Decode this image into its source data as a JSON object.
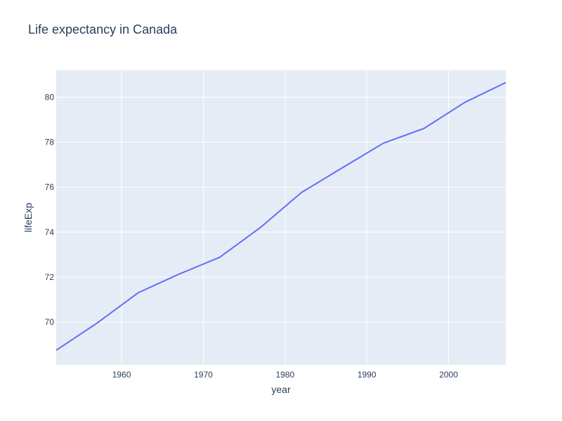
{
  "chart_data": {
    "type": "line",
    "title": "Life expectancy in Canada",
    "xlabel": "year",
    "ylabel": "lifeExp",
    "x_ticks": [
      "1960",
      "1970",
      "1980",
      "1990",
      "2000"
    ],
    "y_ticks": [
      "70",
      "72",
      "74",
      "76",
      "78",
      "80"
    ],
    "xlim": [
      1952,
      2007
    ],
    "ylim": [
      68.1,
      81.2
    ],
    "grid": true,
    "legend": "none",
    "colors": {
      "plot_background": "#e5ecf6",
      "grid": "#ffffff",
      "line": "#636efa",
      "text": "#2a3f5f"
    },
    "series": [
      {
        "x": [
          1952,
          1957,
          1962,
          1967,
          1972,
          1977,
          1982,
          1987,
          1992,
          1997,
          2002,
          2007
        ],
        "values": [
          68.75,
          69.96,
          71.3,
          72.13,
          72.88,
          74.21,
          75.76,
          76.86,
          77.95,
          78.61,
          79.77,
          80.65
        ]
      }
    ]
  }
}
